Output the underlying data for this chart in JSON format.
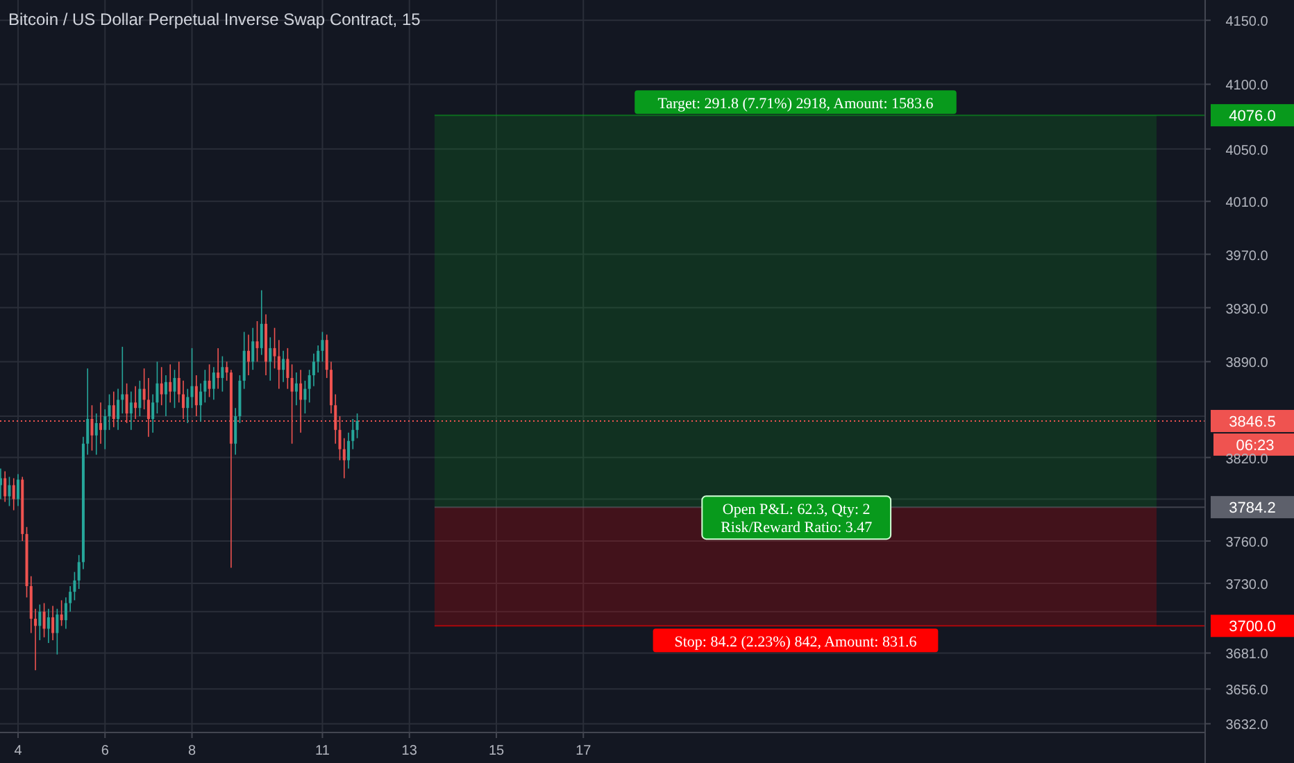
{
  "chart_data": {
    "type": "candlestick",
    "title": "Bitcoin / US Dollar Perpetual Inverse Swap Contract, 15",
    "x": [
      3.6,
      3.7,
      3.8,
      3.9,
      4.0,
      4.1,
      4.2,
      4.3,
      4.4,
      4.5,
      4.6,
      4.7,
      4.8,
      4.9,
      5.0,
      5.1,
      5.2,
      5.3,
      5.4,
      5.5,
      5.6,
      5.7,
      5.8,
      5.9,
      6.0,
      6.1,
      6.2,
      6.3,
      6.4,
      6.5,
      6.6,
      6.7,
      6.8,
      6.9,
      7.0,
      7.1,
      7.2,
      7.3,
      7.4,
      7.5,
      7.6,
      7.7,
      7.8,
      7.9,
      8.0,
      8.1,
      8.2,
      8.3,
      8.4,
      8.5,
      8.6,
      8.7,
      8.8,
      8.9,
      9.0,
      9.1,
      9.2,
      9.3,
      9.4,
      9.5,
      9.6,
      9.7,
      9.8,
      9.9,
      10.0,
      10.1,
      10.2,
      10.3,
      10.4,
      10.5,
      10.6,
      10.7,
      10.8,
      10.9,
      11.0,
      11.1,
      11.2,
      11.3,
      11.4,
      11.5,
      11.6,
      11.7,
      11.8
    ],
    "ohlc": [
      [
        3800,
        3812,
        3790,
        3805
      ],
      [
        3805,
        3810,
        3788,
        3792
      ],
      [
        3792,
        3806,
        3785,
        3800
      ],
      [
        3800,
        3805,
        3782,
        3790
      ],
      [
        3790,
        3808,
        3785,
        3804
      ],
      [
        3804,
        3806,
        3760,
        3765
      ],
      [
        3765,
        3770,
        3720,
        3728
      ],
      [
        3728,
        3735,
        3695,
        3705
      ],
      [
        3705,
        3712,
        3669,
        3700
      ],
      [
        3700,
        3715,
        3690,
        3710
      ],
      [
        3710,
        3716,
        3692,
        3698
      ],
      [
        3698,
        3712,
        3688,
        3706
      ],
      [
        3706,
        3714,
        3690,
        3695
      ],
      [
        3695,
        3712,
        3680,
        3708
      ],
      [
        3708,
        3718,
        3700,
        3704
      ],
      [
        3704,
        3720,
        3698,
        3716
      ],
      [
        3716,
        3728,
        3710,
        3724
      ],
      [
        3724,
        3738,
        3718,
        3732
      ],
      [
        3732,
        3750,
        3726,
        3745
      ],
      [
        3745,
        3835,
        3740,
        3830
      ],
      [
        3830,
        3885,
        3822,
        3848
      ],
      [
        3848,
        3858,
        3825,
        3836
      ],
      [
        3836,
        3852,
        3822,
        3845
      ],
      [
        3845,
        3860,
        3830,
        3840
      ],
      [
        3840,
        3855,
        3826,
        3850
      ],
      [
        3850,
        3866,
        3840,
        3858
      ],
      [
        3858,
        3868,
        3842,
        3848
      ],
      [
        3848,
        3870,
        3840,
        3862
      ],
      [
        3862,
        3901,
        3852,
        3866
      ],
      [
        3866,
        3874,
        3845,
        3852
      ],
      [
        3852,
        3868,
        3840,
        3860
      ],
      [
        3860,
        3872,
        3848,
        3856
      ],
      [
        3856,
        3876,
        3850,
        3870
      ],
      [
        3870,
        3885,
        3855,
        3862
      ],
      [
        3862,
        3878,
        3835,
        3848
      ],
      [
        3848,
        3866,
        3838,
        3860
      ],
      [
        3860,
        3890,
        3852,
        3874
      ],
      [
        3874,
        3886,
        3858,
        3866
      ],
      [
        3866,
        3880,
        3850,
        3875
      ],
      [
        3875,
        3888,
        3860,
        3868
      ],
      [
        3868,
        3884,
        3856,
        3878
      ],
      [
        3878,
        3890,
        3860,
        3866
      ],
      [
        3866,
        3876,
        3848,
        3856
      ],
      [
        3856,
        3870,
        3845,
        3864
      ],
      [
        3864,
        3900,
        3856,
        3872
      ],
      [
        3872,
        3880,
        3850,
        3858
      ],
      [
        3858,
        3874,
        3846,
        3868
      ],
      [
        3868,
        3884,
        3860,
        3876
      ],
      [
        3876,
        3888,
        3864,
        3870
      ],
      [
        3870,
        3886,
        3862,
        3882
      ],
      [
        3882,
        3900,
        3870,
        3878
      ],
      [
        3878,
        3894,
        3868,
        3886
      ],
      [
        3886,
        3890,
        3876,
        3882
      ],
      [
        3882,
        3884,
        3741,
        3830
      ],
      [
        3830,
        3856,
        3822,
        3850
      ],
      [
        3850,
        3880,
        3845,
        3876
      ],
      [
        3876,
        3912,
        3870,
        3898
      ],
      [
        3898,
        3910,
        3880,
        3890
      ],
      [
        3890,
        3915,
        3884,
        3905
      ],
      [
        3905,
        3920,
        3890,
        3900
      ],
      [
        3900,
        3943,
        3895,
        3918
      ],
      [
        3918,
        3925,
        3880,
        3890
      ],
      [
        3890,
        3908,
        3876,
        3900
      ],
      [
        3900,
        3915,
        3885,
        3894
      ],
      [
        3894,
        3906,
        3870,
        3884
      ],
      [
        3884,
        3898,
        3875,
        3892
      ],
      [
        3892,
        3900,
        3870,
        3878
      ],
      [
        3878,
        3888,
        3830,
        3868
      ],
      [
        3868,
        3882,
        3858,
        3874
      ],
      [
        3874,
        3884,
        3838,
        3862
      ],
      [
        3862,
        3876,
        3852,
        3870
      ],
      [
        3870,
        3884,
        3860,
        3880
      ],
      [
        3880,
        3896,
        3872,
        3890
      ],
      [
        3890,
        3902,
        3882,
        3898
      ],
      [
        3898,
        3912,
        3890,
        3906
      ],
      [
        3906,
        3910,
        3878,
        3884
      ],
      [
        3884,
        3890,
        3852,
        3858
      ],
      [
        3858,
        3866,
        3830,
        3840
      ],
      [
        3840,
        3850,
        3818,
        3826
      ],
      [
        3826,
        3834,
        3805,
        3818
      ],
      [
        3818,
        3838,
        3812,
        3832
      ],
      [
        3832,
        3848,
        3826,
        3840
      ],
      [
        3840,
        3852,
        3834,
        3846.5
      ]
    ],
    "xlim": [
      3.585,
      31.3
    ],
    "xticks": [
      4,
      6,
      8,
      11,
      13,
      15,
      17
    ],
    "ylim": [
      3626,
      4166
    ],
    "log": true,
    "grid": true,
    "yticks": [
      {
        "value": 3632,
        "label": "3632.0"
      },
      {
        "value": 3656,
        "label": "3656.0"
      },
      {
        "value": 3681,
        "label": "3681.0"
      },
      {
        "value": 3710,
        "label": null
      },
      {
        "value": 3730,
        "label": "3730.0"
      },
      {
        "value": 3760,
        "label": "3760.0"
      },
      {
        "value": 3790,
        "label": null
      },
      {
        "value": 3820,
        "label": "3820.0"
      },
      {
        "value": 3850,
        "label": null
      },
      {
        "value": 3890,
        "label": "3890.0"
      },
      {
        "value": 3930,
        "label": "3930.0"
      },
      {
        "value": 3970,
        "label": "3970.0"
      },
      {
        "value": 4010,
        "label": "4010.0"
      },
      {
        "value": 4050,
        "label": "4050.0"
      },
      {
        "value": 4100,
        "label": "4100.0"
      },
      {
        "value": 4150,
        "label": "4150.0"
      }
    ],
    "bands": [
      {
        "axis": "y",
        "from": 3784.2,
        "to": 4076,
        "label": "Target: 291.8 (7.71%) 2918, Amount: 1583.6",
        "color": "#089a1c"
      },
      {
        "axis": "y",
        "from": 3700,
        "to": 3784.2,
        "label": "Stop: 84.2 (2.23%) 842, Amount: 831.6",
        "color": "#ff0000"
      }
    ],
    "ref_lines": [
      {
        "axis": "y",
        "value": 3846.5,
        "label": "3846.5",
        "color": "#ef5350",
        "line_style": "dotted"
      },
      {
        "axis": "y",
        "value": 4076,
        "label": "4076.0",
        "color": "#089a1c",
        "line_style": "solid"
      },
      {
        "axis": "y",
        "value": 3784.2,
        "label": "3784.2",
        "color": "#5d606b",
        "line_style": "solid"
      },
      {
        "axis": "y",
        "value": 3700,
        "label": "3700.0",
        "color": "#ff0000",
        "line_style": "solid"
      }
    ],
    "annotations": [
      "06:23",
      {
        "text": "Open P&L: 62.3, Qty: 2\nRisk/Reward Ratio: 3.47",
        "x": 21.9,
        "y": 3784.2
      }
    ]
  }
}
